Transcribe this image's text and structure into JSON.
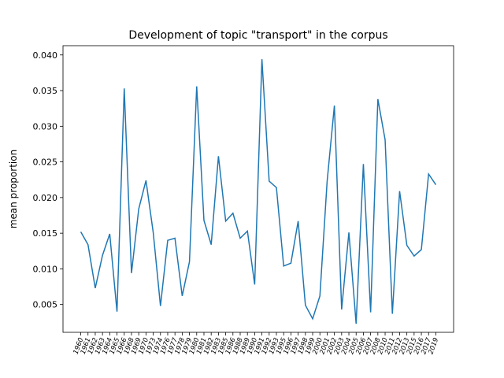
{
  "chart_data": {
    "type": "line",
    "title": "Development of topic \"transport\" in the corpus",
    "y_label": "mean proportion",
    "categories": [
      "1960",
      "1961",
      "1962",
      "1963",
      "1964",
      "1965",
      "1966",
      "1968",
      "1969",
      "1970",
      "1973",
      "1974",
      "1976",
      "1977",
      "1978",
      "1979",
      "1980",
      "1981",
      "1982",
      "1983",
      "1985",
      "1986",
      "1988",
      "1989",
      "1990",
      "1991",
      "1992",
      "1993",
      "1995",
      "1996",
      "1997",
      "1998",
      "1999",
      "2000",
      "2001",
      "2002",
      "2003",
      "2004",
      "2005",
      "2006",
      "2007",
      "2008",
      "2010",
      "2011",
      "2012",
      "2013",
      "2015",
      "2016",
      "2017",
      "2019"
    ],
    "series": [
      {
        "name": "transport",
        "color": "#1f77b4",
        "values": [
          0.0152,
          0.0134,
          0.0073,
          0.0119,
          0.0149,
          0.004,
          0.0353,
          0.0094,
          0.0184,
          0.0224,
          0.0151,
          0.0048,
          0.014,
          0.0143,
          0.0062,
          0.011,
          0.0356,
          0.0168,
          0.0134,
          0.0258,
          0.0167,
          0.0178,
          0.0143,
          0.0153,
          0.0078,
          0.0394,
          0.0223,
          0.0214,
          0.0104,
          0.0108,
          0.0167,
          0.0049,
          0.003,
          0.0062,
          0.0223,
          0.0329,
          0.0043,
          0.0151,
          0.0023,
          0.0247,
          0.0039,
          0.0338,
          0.0281,
          0.0037,
          0.0209,
          0.0133,
          0.0118,
          0.0127,
          0.0233,
          0.0218
        ]
      }
    ],
    "ylim": [
      0.0011,
      0.0413
    ],
    "yticks": [
      0.005,
      {
        "value": 0.01,
        "label": "0.010"
      },
      0.015,
      {
        "value": 0.02,
        "label": "0.020"
      },
      0.025,
      {
        "value": 0.03,
        "label": "0.030"
      },
      0.035,
      {
        "value": 0.04,
        "label": "0.040"
      }
    ],
    "grid": false
  }
}
